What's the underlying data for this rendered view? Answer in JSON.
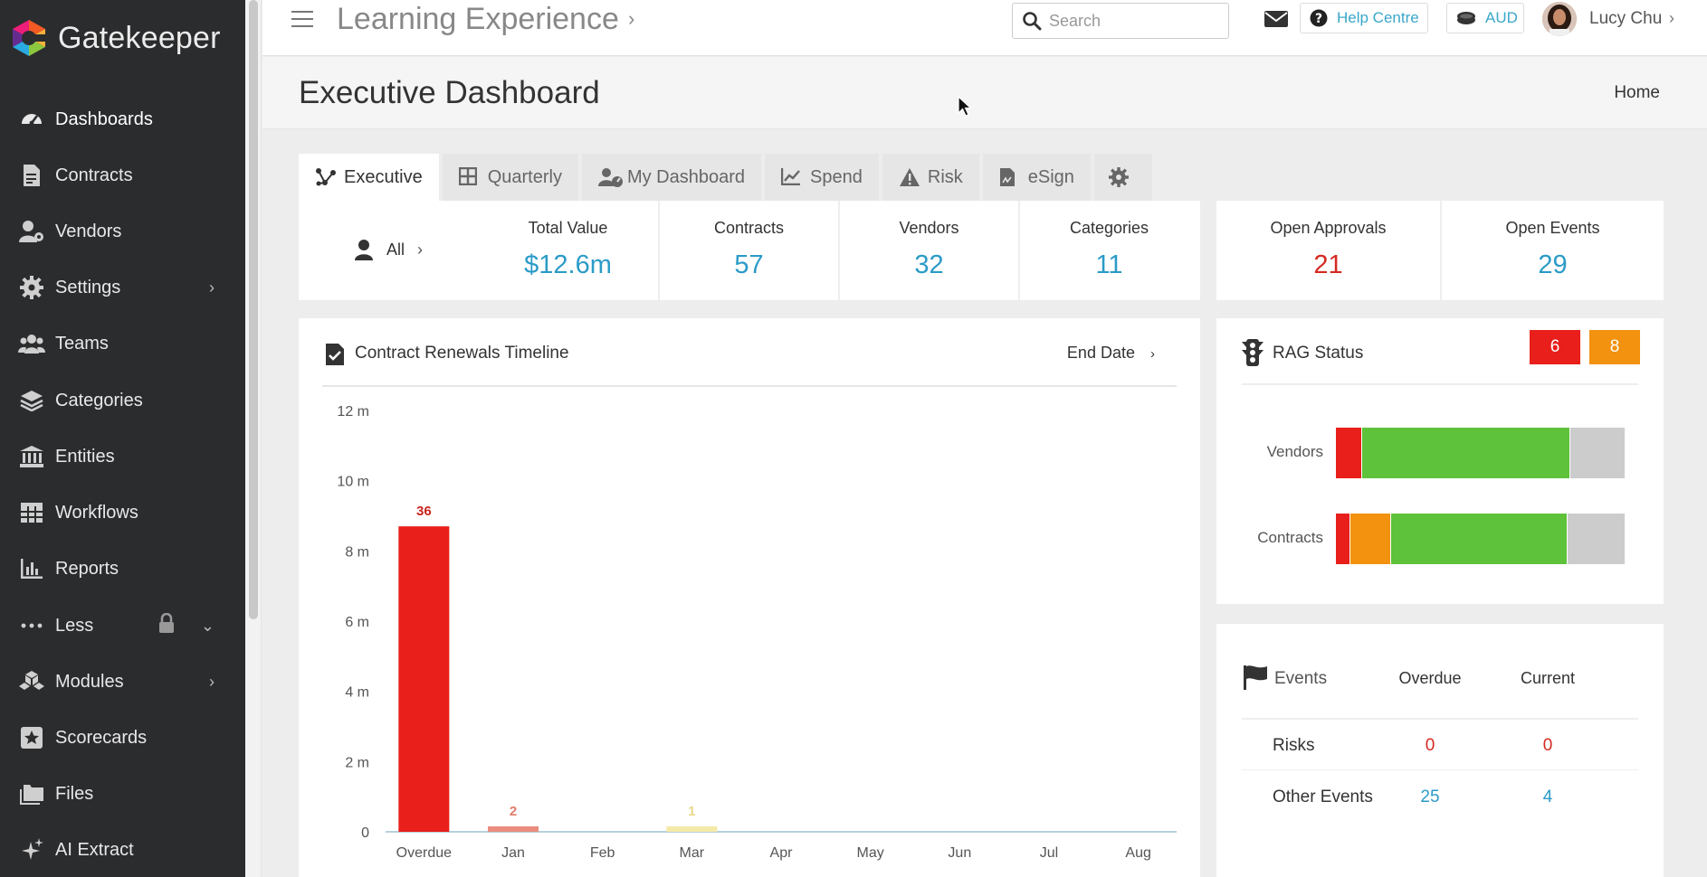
{
  "brand": {
    "name": "Gatekeeper"
  },
  "sidebar": {
    "items": [
      {
        "label": "Dashboards",
        "icon": "dashboard-icon",
        "active": true
      },
      {
        "label": "Contracts",
        "icon": "contract-file-icon"
      },
      {
        "label": "Vendors",
        "icon": "vendor-user-gear-icon"
      },
      {
        "label": "Settings",
        "icon": "gear-icon",
        "caret": "›"
      },
      {
        "label": "Teams",
        "icon": "users-icon"
      },
      {
        "label": "Categories",
        "icon": "layers-icon"
      },
      {
        "label": "Entities",
        "icon": "bank-building-icon"
      },
      {
        "label": "Workflows",
        "icon": "table-grid-icon"
      },
      {
        "label": "Reports",
        "icon": "bar-chart-icon"
      },
      {
        "label": "Less",
        "icon": "ellipsis-icon",
        "caret": "⌄"
      },
      {
        "label": "Modules",
        "icon": "cubes-icon",
        "caret": "›"
      },
      {
        "label": "Scorecards",
        "icon": "star-square-icon"
      },
      {
        "label": "Files",
        "icon": "folders-icon"
      },
      {
        "label": "AI Extract",
        "icon": "sparkles-icon"
      }
    ]
  },
  "topbar": {
    "app_title": "Learning Experience",
    "title_caret": "›",
    "search_placeholder": "Search",
    "help_label": "Help Centre",
    "currency": "AUD",
    "user_name": "Lucy Chu",
    "user_caret": "›"
  },
  "page": {
    "title": "Executive Dashboard",
    "breadcrumb": "Home"
  },
  "tabs": [
    {
      "label": "Executive",
      "icon": "network-nodes-icon",
      "active": true
    },
    {
      "label": "Quarterly",
      "icon": "grid-icon"
    },
    {
      "label": "My Dashboard",
      "icon": "user-gauge-icon"
    },
    {
      "label": "Spend",
      "icon": "line-chart-icon"
    },
    {
      "label": "Risk",
      "icon": "warning-icon"
    },
    {
      "label": "eSign",
      "icon": "signed-document-icon"
    },
    {
      "label": "",
      "icon": "gear-icon"
    }
  ],
  "filter": {
    "label": "All",
    "caret": "›"
  },
  "kpis": [
    {
      "label": "Total Value",
      "value": "$12.6m"
    },
    {
      "label": "Contracts",
      "value": "57"
    },
    {
      "label": "Vendors",
      "value": "32"
    },
    {
      "label": "Categories",
      "value": "11"
    }
  ],
  "kpis_right": [
    {
      "label": "Open Approvals",
      "value": "21",
      "color": "#d42a22"
    },
    {
      "label": "Open Events",
      "value": "29",
      "color": "#2b9bc7"
    }
  ],
  "renewals": {
    "title": "Contract Renewals Timeline",
    "sort_label": "End Date",
    "sort_caret": "›"
  },
  "chart_data": {
    "type": "bar",
    "categories": [
      "Overdue",
      "Jan",
      "Feb",
      "Mar",
      "Apr",
      "May",
      "Jun",
      "Jul",
      "Aug"
    ],
    "values": [
      8.7,
      0.15,
      0,
      0.02,
      0,
      0,
      0,
      0,
      0
    ],
    "counts": [
      "36",
      "2",
      "",
      "1",
      "",
      "",
      "",
      "",
      ""
    ],
    "colors": [
      "#e81f1a",
      "#ea8c7e",
      "#e8e8e8",
      "#f5e9a8",
      "#e8e8e8",
      "#e8e8e8",
      "#e8e8e8",
      "#e8e8e8",
      "#e8e8e8"
    ],
    "count_colors": [
      "#c9241d",
      "#e07c6c",
      "#999999",
      "#e8d88a",
      "#999999",
      "#999999",
      "#999999",
      "#999999",
      "#999999"
    ],
    "yticks": [
      0,
      2,
      4,
      6,
      8,
      10,
      12
    ],
    "ytick_labels": [
      "0",
      "2 m",
      "4 m",
      "6 m",
      "8 m",
      "10 m",
      "12 m"
    ],
    "ylim": [
      0,
      12
    ],
    "ylabel": "",
    "xlabel": ""
  },
  "rag": {
    "title": "RAG Status",
    "badges": [
      {
        "value": "6",
        "color": "#e81f1a"
      },
      {
        "value": "8",
        "color": "#f2920e"
      }
    ],
    "rows": [
      {
        "label": "Vendors",
        "segments": [
          {
            "fraction": 0.09,
            "color": "#e81f1a"
          },
          {
            "fraction": 0.72,
            "color": "#5ec23a"
          },
          {
            "fraction": 0.19,
            "color": "#cccccc"
          }
        ]
      },
      {
        "label": "Contracts",
        "segments": [
          {
            "fraction": 0.05,
            "color": "#e81f1a"
          },
          {
            "fraction": 0.14,
            "color": "#f2920e"
          },
          {
            "fraction": 0.61,
            "color": "#5ec23a"
          },
          {
            "fraction": 0.2,
            "color": "#cccccc"
          }
        ]
      }
    ]
  },
  "events": {
    "title": "Events",
    "columns": [
      "Overdue",
      "Current"
    ],
    "rows": [
      {
        "label": "Risks",
        "overdue": "0",
        "current": "0",
        "overdue_color": "red",
        "current_color": "red"
      },
      {
        "label": "Other Events",
        "overdue": "25",
        "current": "4",
        "overdue_color": "blue",
        "current_color": "blue"
      }
    ]
  }
}
